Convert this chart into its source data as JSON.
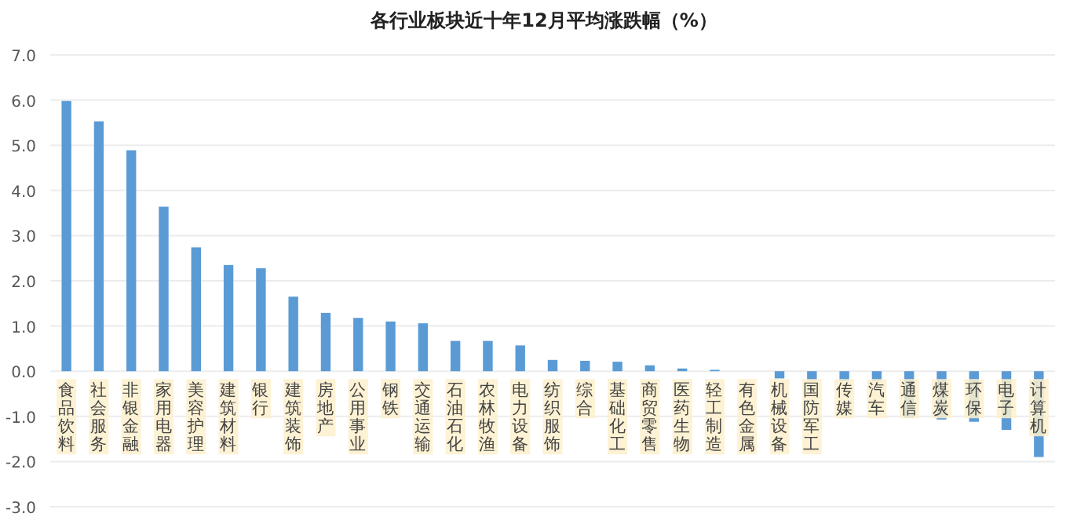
{
  "chart_data": {
    "type": "bar",
    "title": "各行业板块近十年12月平均涨跌幅（%）",
    "categories": [
      "食品饮料",
      "社会服务",
      "非银金融",
      "家用电器",
      "美容护理",
      "建筑材料",
      "银行",
      "建筑装饰",
      "房地产",
      "公用事业",
      "钢铁",
      "交通运输",
      "石油石化",
      "农林牧渔",
      "电力设备",
      "纺织服饰",
      "综合",
      "基础化工",
      "商贸零售",
      "医药生物",
      "轻工制造",
      "有色金属",
      "机械设备",
      "国防军工",
      "传媒",
      "汽车",
      "通信",
      "煤炭",
      "环保",
      "电子",
      "计算机"
    ],
    "values": [
      5.98,
      5.53,
      4.89,
      3.64,
      2.74,
      2.35,
      2.28,
      1.65,
      1.29,
      1.18,
      1.1,
      1.06,
      0.67,
      0.67,
      0.57,
      0.25,
      0.23,
      0.21,
      0.13,
      0.06,
      0.03,
      null,
      -0.16,
      -0.2,
      -0.22,
      -0.22,
      -1.03,
      -1.07,
      -1.12,
      -1.3,
      -1.9
    ],
    "color": "#5b9bd5",
    "ylim": [
      -3,
      7
    ],
    "yticks": [
      {
        "value": -3,
        "label": "-3.0"
      },
      {
        "value": -2,
        "label": "-2.0"
      },
      {
        "value": -1,
        "label": "-1.0"
      },
      {
        "value": 0,
        "label": "0.0"
      },
      {
        "value": 1,
        "label": "1.0"
      },
      {
        "value": 2,
        "label": "2.0"
      },
      {
        "value": 3,
        "label": "3.0"
      },
      {
        "value": 4,
        "label": "4.0"
      },
      {
        "value": 5,
        "label": "5.0"
      },
      {
        "value": 6,
        "label": "6.0"
      },
      {
        "value": 7,
        "label": "7.0"
      }
    ],
    "grid": "y"
  }
}
